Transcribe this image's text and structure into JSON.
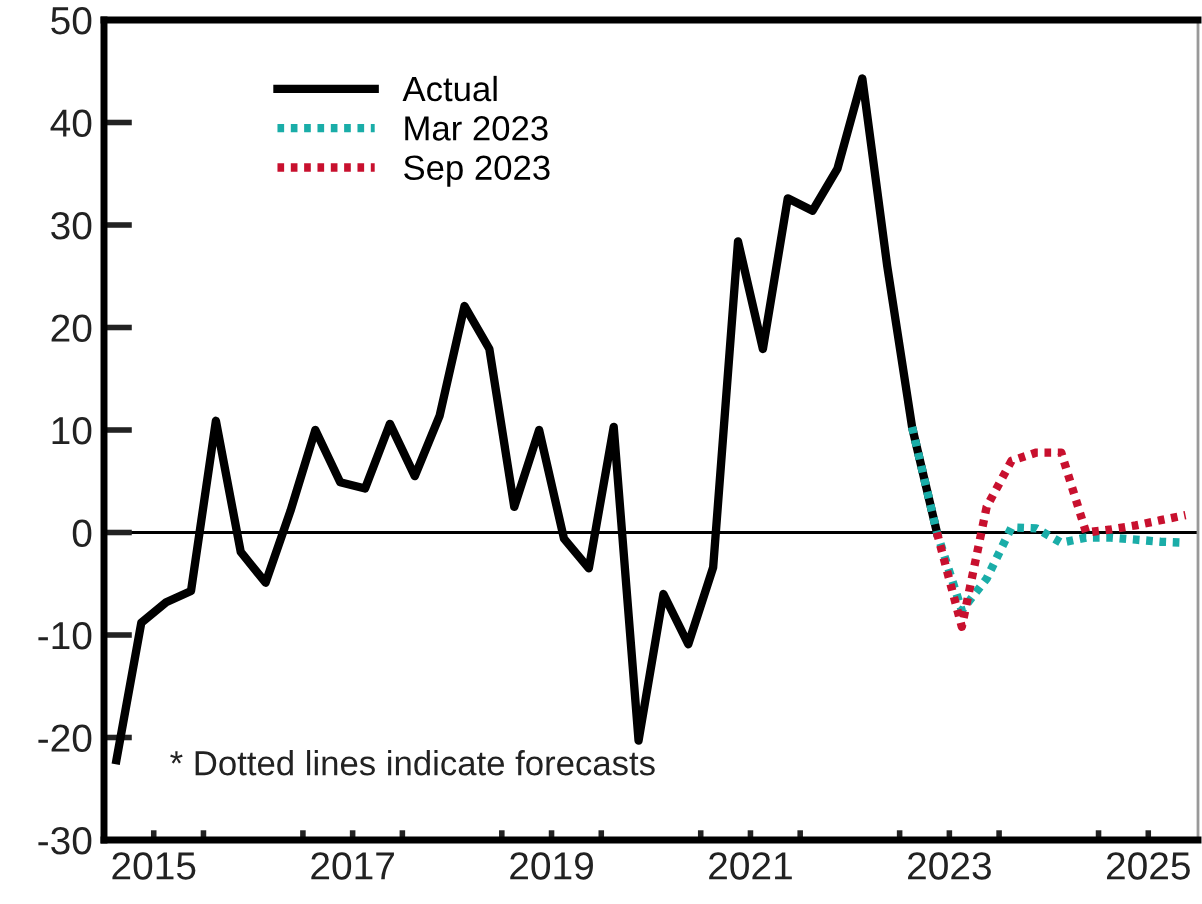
{
  "chart_data": {
    "type": "line",
    "xlim": [
      2015,
      2026
    ],
    "xticks": [
      {
        "value": 2015.5,
        "label": "2015"
      },
      {
        "value": 2016,
        "label": null
      },
      {
        "value": 2017,
        "label": null
      },
      {
        "value": 2017.5,
        "label": "2017"
      },
      {
        "value": 2018,
        "label": null
      },
      {
        "value": 2019,
        "label": null
      },
      {
        "value": 2019.5,
        "label": "2019"
      },
      {
        "value": 2020,
        "label": null
      },
      {
        "value": 2021,
        "label": null
      },
      {
        "value": 2021.5,
        "label": "2021"
      },
      {
        "value": 2022,
        "label": null
      },
      {
        "value": 2023,
        "label": null
      },
      {
        "value": 2023.5,
        "label": "2023"
      },
      {
        "value": 2024,
        "label": null
      },
      {
        "value": 2025,
        "label": null
      },
      {
        "value": 2025.5,
        "label": "2025"
      }
    ],
    "ylim": [
      -30,
      50
    ],
    "yticks": [
      -30,
      -20,
      -10,
      0,
      10,
      20,
      30,
      40,
      50
    ],
    "grid": false,
    "legend": "top left",
    "ref_lines": [
      {
        "axis": "y",
        "value": 0,
        "color": "#000000"
      }
    ],
    "annotations": [
      "* Dotted lines indicate forecasts"
    ],
    "series": [
      {
        "name": "Actual",
        "color": "#000000",
        "line_style": "solid",
        "x": [
          2015.125,
          2015.375,
          2015.625,
          2015.875,
          2016.125,
          2016.375,
          2016.625,
          2016.875,
          2017.125,
          2017.375,
          2017.625,
          2017.875,
          2018.125,
          2018.375,
          2018.625,
          2018.875,
          2019.125,
          2019.375,
          2019.625,
          2019.875,
          2020.125,
          2020.375,
          2020.625,
          2020.875,
          2021.125,
          2021.375,
          2021.625,
          2021.875,
          2022.125,
          2022.375,
          2022.625,
          2022.875,
          2023.125,
          2023.375
        ],
        "values": [
          -22.2,
          -8.8,
          -6.8,
          -5.7,
          10.9,
          -1.9,
          -4.9,
          2.1,
          10.0,
          4.9,
          4.3,
          10.6,
          5.5,
          11.4,
          22.1,
          17.9,
          2.5,
          10.0,
          -0.6,
          -3.5,
          10.3,
          -20.3,
          -6.0,
          -10.9,
          -3.4,
          28.4,
          17.9,
          32.6,
          31.4,
          35.5,
          44.3,
          26.0,
          10.3,
          0
        ]
      },
      {
        "name": "Mar 2023",
        "color": "#1aada8",
        "line_style": "dotted",
        "x": [
          2023.125,
          2023.375,
          2023.625,
          2023.875,
          2024.125,
          2024.375,
          2024.625,
          2024.875,
          2025.125,
          2025.375,
          2025.625,
          2025.875
        ],
        "values": [
          10.3,
          0,
          -7.6,
          -4.5,
          0.5,
          0.4,
          -1.0,
          -0.5,
          -0.5,
          -0.7,
          -0.9,
          -1.0
        ]
      },
      {
        "name": "Sep 2023",
        "color": "#c8102e",
        "line_style": "dotted",
        "x": [
          2023.375,
          2023.625,
          2023.875,
          2024.125,
          2024.375,
          2024.625,
          2024.875,
          2025.125,
          2025.375,
          2025.625,
          2025.875
        ],
        "values": [
          0,
          -9.2,
          2.5,
          7.0,
          7.8,
          7.8,
          0,
          0.3,
          0.7,
          1.2,
          1.7
        ]
      }
    ]
  }
}
